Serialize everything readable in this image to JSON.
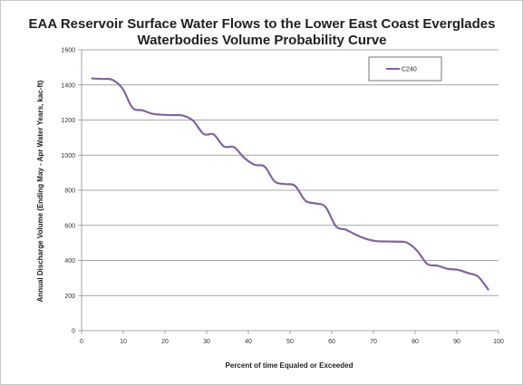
{
  "chart_data": {
    "type": "line",
    "title_lines": [
      "EAA Reservoir Surface Water Flows to the Lower East Coast Everglades",
      "Waterbodies Volume Probability Curve"
    ],
    "xlabel": "Percent of time Equaled or Exceeded",
    "ylabel": "Annual Discharge Volume (Ending May - Apr Water Years, kac-ft)",
    "xlim": [
      0,
      100
    ],
    "ylim": [
      0,
      1600
    ],
    "x_ticks": [
      0,
      10,
      20,
      30,
      40,
      50,
      60,
      70,
      80,
      90,
      100
    ],
    "y_ticks": [
      0,
      200,
      400,
      600,
      800,
      1000,
      1200,
      1400,
      1600
    ],
    "grid": "horizontal",
    "legend_position": "top-right",
    "series": [
      {
        "name": "C240",
        "color": "#8064a2",
        "x": [
          2.4,
          4.9,
          7.3,
          9.8,
          12.2,
          14.6,
          17.1,
          19.5,
          22.0,
          24.4,
          26.8,
          29.3,
          31.7,
          34.1,
          36.6,
          39.0,
          41.5,
          43.9,
          46.3,
          48.8,
          51.2,
          53.7,
          56.1,
          58.5,
          61.0,
          63.4,
          65.9,
          68.3,
          70.7,
          73.2,
          75.6,
          78.0,
          80.5,
          82.9,
          85.4,
          87.8,
          90.2,
          92.7,
          95.1,
          97.6
        ],
        "y": [
          1437,
          1434,
          1430,
          1380,
          1270,
          1255,
          1235,
          1230,
          1228,
          1225,
          1195,
          1120,
          1118,
          1050,
          1045,
          985,
          945,
          935,
          850,
          835,
          825,
          740,
          725,
          705,
          595,
          575,
          545,
          522,
          510,
          508,
          507,
          502,
          455,
          380,
          370,
          352,
          347,
          328,
          308,
          232
        ]
      }
    ]
  }
}
